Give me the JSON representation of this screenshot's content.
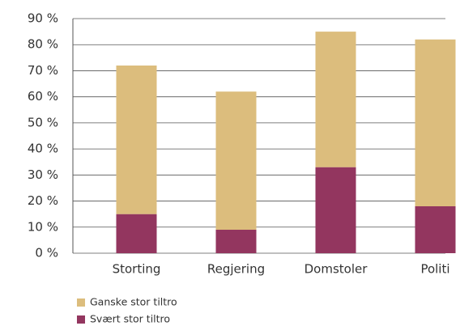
{
  "chart_data": {
    "type": "stacked_bar",
    "categories": [
      "Storting",
      "Regjering",
      "Domstoler",
      "Politi"
    ],
    "series": [
      {
        "name": "Ganske stor tiltro",
        "color": "#dcbd7d",
        "values": [
          57,
          53,
          52,
          64
        ]
      },
      {
        "name": "Svært stor tiltro",
        "color": "#93365f",
        "values": [
          15,
          9,
          33,
          18
        ]
      }
    ],
    "ylim": [
      0,
      90
    ],
    "yticks": [
      {
        "value": 0,
        "label": "0 %"
      },
      {
        "value": 10,
        "label": "10 %"
      },
      {
        "value": 20,
        "label": "20 %"
      },
      {
        "value": 30,
        "label": "30 %"
      },
      {
        "value": 40,
        "label": "40 %"
      },
      {
        "value": 50,
        "label": "50 %"
      },
      {
        "value": 60,
        "label": "60 %"
      },
      {
        "value": 70,
        "label": "70 %"
      },
      {
        "value": 80,
        "label": "80 %"
      },
      {
        "value": 90,
        "label": "90 %"
      }
    ],
    "grid": true
  }
}
